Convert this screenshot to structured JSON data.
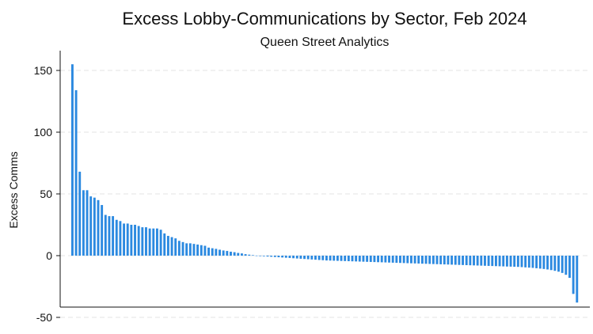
{
  "chart_data": {
    "type": "bar",
    "title": "Excess Lobby-Communications by Sector, Feb 2024",
    "subtitle": "Queen Street Analytics",
    "xlabel": "",
    "ylabel": "Excess Comms",
    "ylim": [
      -50,
      160
    ],
    "yticks": [
      150,
      100,
      50,
      0,
      -50
    ],
    "grid": true,
    "bar_color": "#2b89e0",
    "values": [
      155,
      134,
      68,
      53,
      53,
      48,
      47,
      45,
      41,
      33,
      32,
      32,
      29,
      28,
      26,
      26,
      25,
      25,
      24,
      23,
      23,
      22,
      22,
      22,
      21,
      18,
      16,
      15,
      14,
      12,
      11,
      10,
      10,
      9.5,
      9,
      8.5,
      8,
      6.5,
      6,
      5.5,
      4.8,
      4.2,
      3.8,
      3.2,
      2.8,
      2.2,
      1.8,
      1.2,
      0.8,
      0.4,
      0.1,
      -0.2,
      -0.5,
      -0.7,
      -0.9,
      -1.1,
      -1.3,
      -1.5,
      -1.7,
      -1.9,
      -2.1,
      -2.3,
      -2.5,
      -2.7,
      -2.9,
      -3.1,
      -3.3,
      -3.5,
      -3.7,
      -3.9,
      -4.0,
      -4.1,
      -4.2,
      -4.3,
      -4.4,
      -4.5,
      -4.6,
      -4.7,
      -4.8,
      -4.9,
      -5.0,
      -5.1,
      -5.2,
      -5.3,
      -5.4,
      -5.5,
      -5.6,
      -5.7,
      -5.8,
      -5.9,
      -6.0,
      -6.1,
      -6.2,
      -6.3,
      -6.4,
      -6.5,
      -6.6,
      -6.7,
      -6.8,
      -6.9,
      -7.0,
      -7.1,
      -7.2,
      -7.3,
      -7.4,
      -7.5,
      -7.6,
      -7.7,
      -7.8,
      -7.9,
      -8.0,
      -8.1,
      -8.2,
      -8.3,
      -8.4,
      -8.5,
      -8.6,
      -8.7,
      -8.8,
      -8.9,
      -9.0,
      -9.1,
      -9.3,
      -9.5,
      -9.7,
      -9.9,
      -10.2,
      -10.5,
      -10.8,
      -11.2,
      -11.7,
      -12.3,
      -13.0,
      -14.0,
      -15.5,
      -18,
      -31,
      -38
    ]
  }
}
